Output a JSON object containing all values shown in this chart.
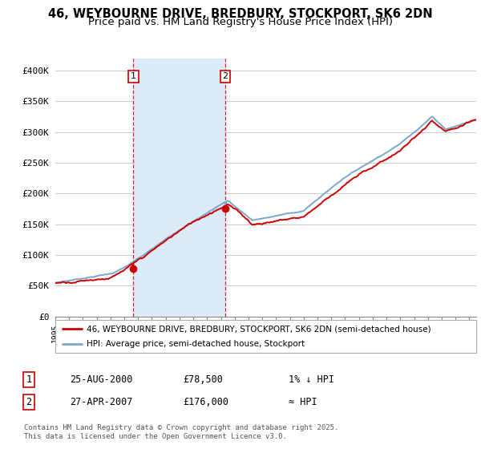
{
  "title": "46, WEYBOURNE DRIVE, BREDBURY, STOCKPORT, SK6 2DN",
  "subtitle": "Price paid vs. HM Land Registry's House Price Index (HPI)",
  "title_fontsize": 10.5,
  "subtitle_fontsize": 9.5,
  "ylim": [
    0,
    420000
  ],
  "yticks": [
    0,
    50000,
    100000,
    150000,
    200000,
    250000,
    300000,
    350000,
    400000
  ],
  "ytick_labels": [
    "£0",
    "£50K",
    "£100K",
    "£150K",
    "£200K",
    "£250K",
    "£300K",
    "£350K",
    "£400K"
  ],
  "sale1_year": 2000.65,
  "sale1_price": 78500,
  "sale1_label": "1",
  "sale1_date": "25-AUG-2000",
  "sale1_price_str": "£78,500",
  "sale1_rel": "1% ↓ HPI",
  "sale2_year": 2007.32,
  "sale2_price": 176000,
  "sale2_label": "2",
  "sale2_date": "27-APR-2007",
  "sale2_price_str": "£176,000",
  "sale2_rel": "≈ HPI",
  "red_color": "#cc0000",
  "blue_color": "#7ba7cc",
  "blue_fill": "#ddeaf7",
  "grid_color": "#cccccc",
  "chart_bg": "#ffffff",
  "shade_between_color": "#ddeaf7",
  "legend_line1": "46, WEYBOURNE DRIVE, BREDBURY, STOCKPORT, SK6 2DN (semi-detached house)",
  "legend_line2": "HPI: Average price, semi-detached house, Stockport",
  "footnote": "Contains HM Land Registry data © Crown copyright and database right 2025.\nThis data is licensed under the Open Government Licence v3.0.",
  "xstart": 1995,
  "xend": 2025.5
}
